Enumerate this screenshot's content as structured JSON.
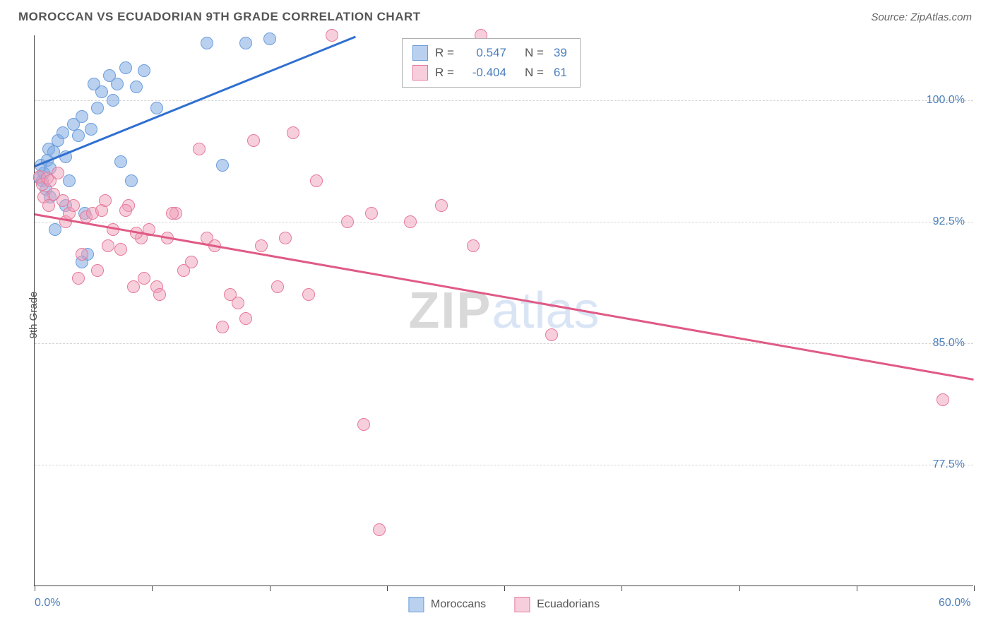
{
  "title": "MOROCCAN VS ECUADORIAN 9TH GRADE CORRELATION CHART",
  "source": "Source: ZipAtlas.com",
  "yaxis_title": "9th Grade",
  "watermark": {
    "zip": "ZIP",
    "atlas": "atlas"
  },
  "chart": {
    "type": "scatter",
    "xlim": [
      0,
      60
    ],
    "ylim": [
      70,
      104
    ],
    "xticks": [
      0,
      7.5,
      15,
      22.5,
      30,
      37.5,
      45,
      52.5,
      60
    ],
    "xtick_labels": {
      "0": "0.0%",
      "60": "60.0%"
    },
    "ygrid": [
      77.5,
      85.0,
      92.5,
      100.0
    ],
    "ytick_labels": [
      "77.5%",
      "85.0%",
      "92.5%",
      "100.0%"
    ],
    "background_color": "#ffffff",
    "grid_color": "#d5d5d5",
    "marker_radius": 9,
    "marker_opacity": 0.55,
    "series": [
      {
        "name": "Moroccans",
        "color_stroke": "#6a9edc",
        "color_fill": "rgba(130,170,225,0.55)",
        "R": "0.547",
        "N": "39",
        "trend": {
          "x1": 0,
          "y1": 96.0,
          "x2": 20.5,
          "y2": 104.0,
          "color": "#2f6fd0",
          "width": 2.5
        },
        "points": [
          [
            0.3,
            95.2
          ],
          [
            0.5,
            95.0
          ],
          [
            0.6,
            95.5
          ],
          [
            0.4,
            96.0
          ],
          [
            0.8,
            96.3
          ],
          [
            0.9,
            97.0
          ],
          [
            1.0,
            95.8
          ],
          [
            1.2,
            96.8
          ],
          [
            0.7,
            94.5
          ],
          [
            1.3,
            92.0
          ],
          [
            1.5,
            97.5
          ],
          [
            1.8,
            98.0
          ],
          [
            2.0,
            96.5
          ],
          [
            2.2,
            95.0
          ],
          [
            2.5,
            98.5
          ],
          [
            2.8,
            97.8
          ],
          [
            3.0,
            99.0
          ],
          [
            3.2,
            93.0
          ],
          [
            3.4,
            90.5
          ],
          [
            3.6,
            98.2
          ],
          [
            4.0,
            99.5
          ],
          [
            4.3,
            100.5
          ],
          [
            4.8,
            101.5
          ],
          [
            5.0,
            100.0
          ],
          [
            5.3,
            101.0
          ],
          [
            5.8,
            102.0
          ],
          [
            6.5,
            100.8
          ],
          [
            7.0,
            101.8
          ],
          [
            7.8,
            99.5
          ],
          [
            5.5,
            96.2
          ],
          [
            6.2,
            95.0
          ],
          [
            2.0,
            93.5
          ],
          [
            3.0,
            90.0
          ],
          [
            1.0,
            94.0
          ],
          [
            11.0,
            103.5
          ],
          [
            12.0,
            96.0
          ],
          [
            13.5,
            103.5
          ],
          [
            15.0,
            103.8
          ],
          [
            3.8,
            101.0
          ]
        ]
      },
      {
        "name": "Ecuadorians",
        "color_stroke": "#e67a9a",
        "color_fill": "rgba(240,160,185,0.50)",
        "R": "-0.404",
        "N": "61",
        "trend": {
          "x1": 0,
          "y1": 93.0,
          "x2": 60,
          "y2": 82.8,
          "color": "#e05a85",
          "width": 2.5
        },
        "points": [
          [
            0.3,
            95.3
          ],
          [
            0.5,
            94.8
          ],
          [
            0.8,
            95.2
          ],
          [
            1.0,
            95.0
          ],
          [
            1.2,
            94.2
          ],
          [
            1.5,
            95.5
          ],
          [
            0.6,
            94.0
          ],
          [
            0.9,
            93.5
          ],
          [
            1.8,
            93.8
          ],
          [
            2.0,
            92.5
          ],
          [
            2.2,
            93.0
          ],
          [
            2.5,
            93.5
          ],
          [
            3.0,
            90.5
          ],
          [
            3.3,
            92.8
          ],
          [
            3.7,
            93.0
          ],
          [
            4.0,
            89.5
          ],
          [
            4.3,
            93.2
          ],
          [
            4.7,
            91.0
          ],
          [
            5.0,
            92.0
          ],
          [
            5.5,
            90.8
          ],
          [
            6.0,
            93.5
          ],
          [
            6.3,
            88.5
          ],
          [
            6.8,
            91.5
          ],
          [
            7.0,
            89.0
          ],
          [
            7.3,
            92.0
          ],
          [
            7.8,
            88.5
          ],
          [
            8.0,
            88.0
          ],
          [
            8.5,
            91.5
          ],
          [
            9.0,
            93.0
          ],
          [
            9.5,
            89.5
          ],
          [
            10.0,
            90.0
          ],
          [
            10.5,
            97.0
          ],
          [
            11.0,
            91.5
          ],
          [
            11.5,
            91.0
          ],
          [
            12.0,
            86.0
          ],
          [
            12.5,
            88.0
          ],
          [
            13.0,
            87.5
          ],
          [
            13.5,
            86.5
          ],
          [
            14.0,
            97.5
          ],
          [
            14.5,
            91.0
          ],
          [
            15.5,
            88.5
          ],
          [
            16.0,
            91.5
          ],
          [
            16.5,
            98.0
          ],
          [
            17.5,
            88.0
          ],
          [
            18.0,
            95.0
          ],
          [
            19.0,
            104.0
          ],
          [
            20.0,
            92.5
          ],
          [
            21.0,
            80.0
          ],
          [
            21.5,
            93.0
          ],
          [
            22.0,
            73.5
          ],
          [
            24.0,
            92.5
          ],
          [
            26.0,
            93.5
          ],
          [
            28.0,
            91.0
          ],
          [
            28.5,
            104.0
          ],
          [
            33.0,
            85.5
          ],
          [
            4.5,
            93.8
          ],
          [
            5.8,
            93.2
          ],
          [
            6.5,
            91.8
          ],
          [
            8.8,
            93.0
          ],
          [
            58.0,
            81.5
          ],
          [
            2.8,
            89.0
          ]
        ]
      }
    ],
    "legend_stats": {
      "R_label": "R =",
      "N_label": "N ="
    },
    "bottom_legend": [
      "Moroccans",
      "Ecuadorians"
    ]
  }
}
